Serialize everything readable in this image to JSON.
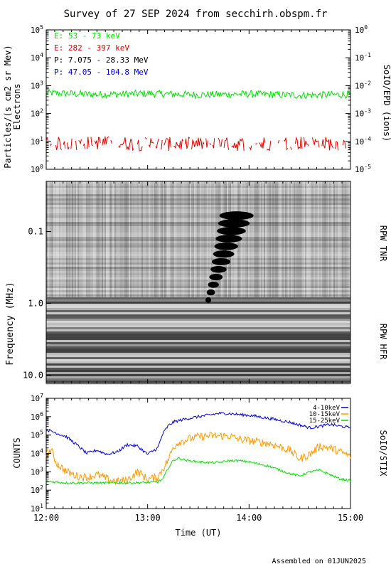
{
  "title": "Survey of 27 SEP 2024 from secchirh.obspm.fr",
  "footer": "Assembled on 01JUN2025",
  "colors": {
    "e1": "#00dd00",
    "e2": "#dd0000",
    "p1": "#000000",
    "p2": "#0000cc",
    "stix1": "#0000cc",
    "stix2": "#ff9900",
    "stix3": "#00dd00"
  },
  "chart_data": [
    {
      "type": "line",
      "panel": "SoIO/EPD",
      "ylabel": "Particles/(s cm2 sr Mev)",
      "ylabel2": "Electrons",
      "right_label": "SoIO/EPD (ions)",
      "yscale": "log",
      "ylim": [
        1,
        100000
      ],
      "yticks": [
        "10^0",
        "10^1",
        "10^2",
        "10^3",
        "10^4",
        "10^5"
      ],
      "y2lim": [
        1e-05,
        1
      ],
      "y2ticks": [
        "10^-5",
        "10^-4",
        "10^-3",
        "10^-2",
        "10^-1",
        "10^0"
      ],
      "xlim": [
        12.0,
        15.0
      ],
      "legend_entries": [
        "E: 53 - 73 keV",
        "E: 282 - 397 keV",
        "P: 7.075 - 28.33 MeV",
        "P: 47.05 - 104.8 MeV"
      ],
      "series": [
        {
          "name": "E: 53 - 73 keV",
          "color_key": "e1",
          "level": 500,
          "spread": 0.13,
          "x": [
            12.0,
            12.5,
            13.0,
            13.5,
            14.0,
            14.5,
            15.0
          ],
          "y": [
            550,
            480,
            520,
            470,
            500,
            450,
            480
          ]
        },
        {
          "name": "E: 282 - 397 keV",
          "color_key": "e2",
          "level": 8,
          "spread": 0.25,
          "x": [
            12.0,
            12.5,
            13.0,
            13.5,
            14.0,
            14.5,
            15.0
          ],
          "y": [
            8,
            9,
            8,
            8,
            8,
            9,
            8
          ]
        }
      ]
    },
    {
      "type": "heatmap",
      "panel": "RPW",
      "ylabel": "Frequency (MHz)",
      "yscale": "log",
      "yticks": [
        "0.1",
        "1.0",
        "10.0"
      ],
      "xlim": [
        12.0,
        15.0
      ],
      "ylim": [
        0.02,
        13
      ],
      "sub_panels": [
        "RPW TNR",
        "RPW HFR"
      ],
      "burst": {
        "type": "type III radio burst",
        "start_time": 13.57,
        "end_time": 13.8,
        "freq_high": 0.9,
        "freq_low": 0.06
      }
    },
    {
      "type": "line",
      "panel": "SoIO/STIX",
      "ylabel": "COUNTS",
      "right_label": "SoIO/STIX",
      "yscale": "log",
      "ylim": [
        10,
        10000000
      ],
      "yticks": [
        "10^1",
        "10^2",
        "10^3",
        "10^4",
        "10^5",
        "10^6",
        "10^7"
      ],
      "xlim": [
        12.0,
        15.0
      ],
      "xticks": [
        "12:00",
        "13:00",
        "14:00",
        "15:00"
      ],
      "xlabel": "Time (UT)",
      "series": [
        {
          "name": "4-10keV",
          "color_key": "stix1",
          "x": [
            12.0,
            12.1,
            12.2,
            12.3,
            12.4,
            12.5,
            12.6,
            12.7,
            12.8,
            12.9,
            13.0,
            13.1,
            13.15,
            13.2,
            13.25,
            13.3,
            13.35,
            13.4,
            13.5,
            13.6,
            13.7,
            13.8,
            13.9,
            14.0,
            14.2,
            14.4,
            14.5,
            14.6,
            14.7,
            14.8,
            14.9,
            15.0
          ],
          "y": [
            200000,
            130000,
            80000,
            30000,
            10000,
            15000,
            9000,
            12000,
            30000,
            25000,
            9000,
            20000,
            120000,
            300000,
            500000,
            600000,
            700000,
            800000,
            1000000,
            1200000,
            1500000,
            1500000,
            1300000,
            1200000,
            800000,
            500000,
            350000,
            250000,
            300000,
            380000,
            300000,
            250000
          ]
        },
        {
          "name": "10-15keV",
          "color_key": "stix2",
          "x": [
            12.0,
            12.05,
            12.1,
            12.2,
            12.3,
            12.4,
            12.5,
            12.6,
            12.7,
            12.8,
            12.9,
            13.0,
            13.1,
            13.15,
            13.2,
            13.25,
            13.3,
            13.4,
            13.5,
            13.6,
            13.7,
            13.8,
            13.9,
            14.0,
            14.2,
            14.4,
            14.5,
            14.6,
            14.7,
            14.8,
            14.9,
            15.0
          ],
          "y": [
            10000,
            15000,
            3000,
            1000,
            600,
            500,
            700,
            400,
            300,
            350,
            1000,
            400,
            500,
            1500,
            4000,
            20000,
            40000,
            60000,
            80000,
            90000,
            90000,
            90000,
            60000,
            50000,
            35000,
            15000,
            5000,
            9000,
            25000,
            20000,
            12000,
            7000
          ]
        },
        {
          "name": "15-25keV",
          "color_key": "stix3",
          "x": [
            12.0,
            12.2,
            12.4,
            12.6,
            12.8,
            13.0,
            13.1,
            13.15,
            13.2,
            13.25,
            13.3,
            13.4,
            13.5,
            13.6,
            13.7,
            13.8,
            13.9,
            14.0,
            14.2,
            14.4,
            14.5,
            14.6,
            14.7,
            14.8,
            14.9,
            15.0
          ],
          "y": [
            300,
            250,
            250,
            250,
            250,
            260,
            280,
            400,
            1500,
            4000,
            5500,
            4000,
            3500,
            3200,
            3200,
            4000,
            4000,
            3500,
            2000,
            800,
            600,
            1000,
            1200,
            700,
            400,
            330
          ]
        }
      ]
    }
  ]
}
